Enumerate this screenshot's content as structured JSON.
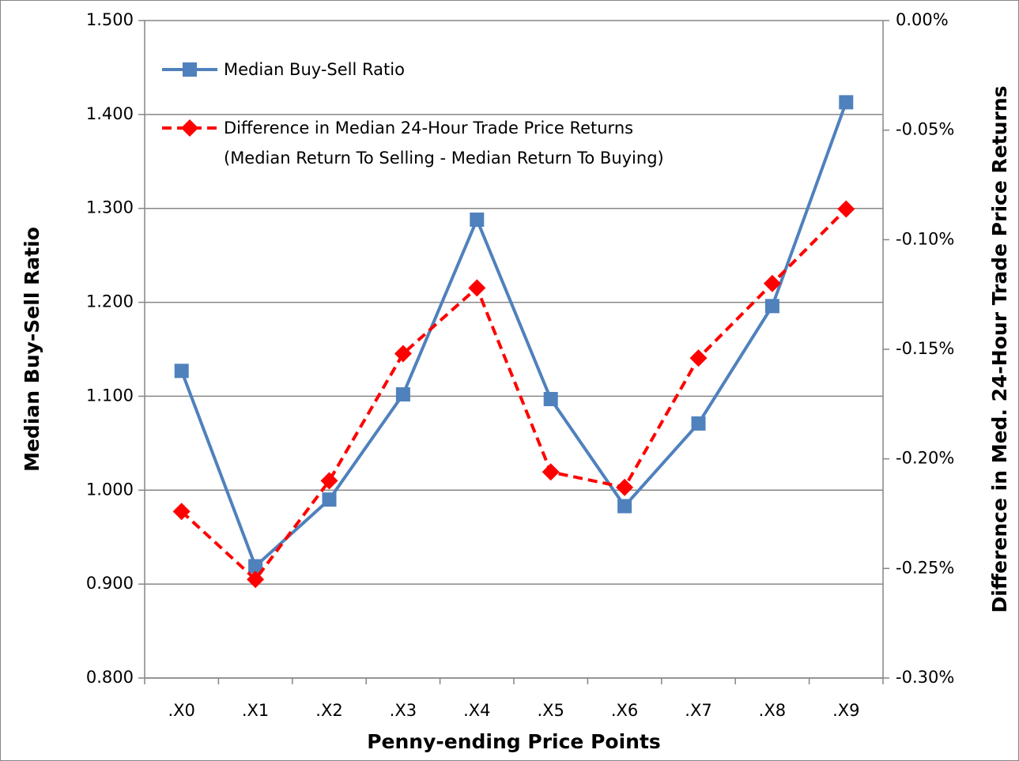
{
  "chart_data": {
    "type": "line",
    "xlabel": "Penny-ending Price Points",
    "ylabel": "Median Buy-Sell Ratio",
    "y2label": "Difference in Med. 24-Hour Trade Price Returns",
    "categories": [
      ".X0",
      ".X1",
      ".X2",
      ".X3",
      ".X4",
      ".X5",
      ".X6",
      ".X7",
      ".X8",
      ".X9"
    ],
    "series": [
      {
        "name": "Median Buy-Sell Ratio",
        "color": "#4f81bd",
        "marker": "square",
        "values": [
          1.127,
          0.919,
          0.99,
          1.102,
          1.288,
          1.097,
          0.983,
          1.071,
          1.196,
          1.413
        ]
      },
      {
        "name": "Difference in Median 24-Hour Trade Price Returns\n(Median Return To Selling - Median Return To Buying)",
        "color": "#ff0000",
        "marker": "diamond",
        "dashed": true,
        "axis": "y2",
        "values": [
          -0.224,
          -0.255,
          -0.21,
          -0.152,
          -0.122,
          -0.206,
          -0.213,
          -0.154,
          -0.12,
          -0.086
        ]
      }
    ],
    "ylim": [
      0.8,
      1.5
    ],
    "yticks": [
      {
        "value": 0.8,
        "label": "0.800"
      },
      {
        "value": 0.9,
        "label": "0.900"
      },
      {
        "value": 1.0,
        "label": "1.000"
      },
      {
        "value": 1.1,
        "label": "1.100"
      },
      {
        "value": 1.2,
        "label": "1.200"
      },
      {
        "value": 1.3,
        "label": "1.300"
      },
      {
        "value": 1.4,
        "label": "1.400"
      },
      {
        "value": 1.5,
        "label": "1.500"
      }
    ],
    "y2lim": [
      -0.3,
      0
    ],
    "y2ticks": [
      {
        "value": -0.3,
        "label": "-0.30%"
      },
      {
        "value": -0.25,
        "label": "-0.25%"
      },
      {
        "value": -0.2,
        "label": "-0.20%"
      },
      {
        "value": -0.15,
        "label": "-0.15%"
      },
      {
        "value": -0.1,
        "label": "-0.10%"
      },
      {
        "value": -0.05,
        "label": "-0.05%"
      },
      {
        "value": 0,
        "label": "0.00%"
      }
    ],
    "grid": true,
    "legend": "top-left"
  }
}
